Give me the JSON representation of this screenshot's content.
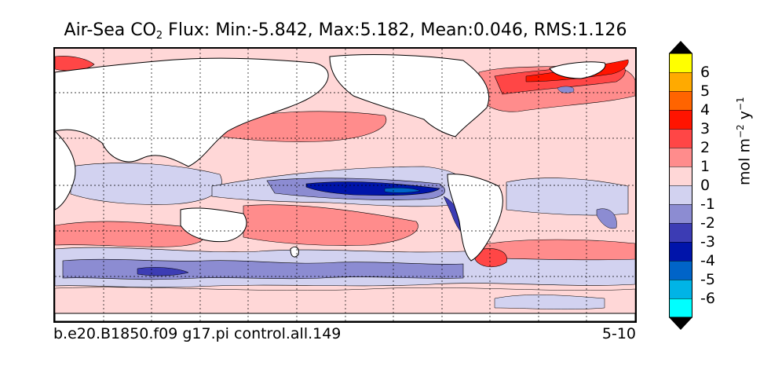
{
  "title": {
    "prefix": "Air-Sea CO",
    "subscript": "2",
    "suffix": " Flux: Min:-5.842, Max:5.182, Mean:0.046, RMS:1.126"
  },
  "caption_left": "b.e20.B1850.f09 g17.pi control.all.149",
  "caption_right": "5-10",
  "colorbar": {
    "levels": [
      -7,
      -6,
      -5,
      -4,
      -3,
      -2,
      -1,
      0,
      1,
      2,
      3,
      4,
      5,
      6,
      7
    ],
    "colors": [
      "#00ffff",
      "#00b4e6",
      "#0064c8",
      "#0014aa",
      "#3c3cb4",
      "#8c8cd2",
      "#d2d2f0",
      "#ffd7d7",
      "#ff8c8c",
      "#ff4646",
      "#ff1400",
      "#ff6400",
      "#ffaa00",
      "#ffff00"
    ],
    "extend_low_color": "#000000",
    "extend_high_color": "#000000",
    "tick_labels": [
      "6",
      "5",
      "4",
      "3",
      "2",
      "1",
      "0",
      "-1",
      "-2",
      "-3",
      "-4",
      "-5",
      "-6"
    ],
    "units_main": "mol m",
    "units_exp1": "−2",
    "units_mid": " y",
    "units_exp2": "−1"
  },
  "map": {
    "projection": "cylindrical",
    "land_color": "#ffffff",
    "coastline_color": "#000000",
    "gridlines": "dotted"
  }
}
